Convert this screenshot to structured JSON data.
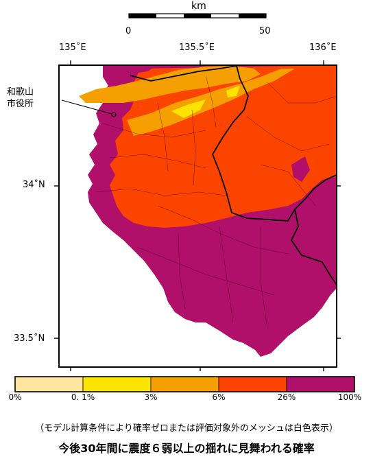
{
  "scale": {
    "unit": "km",
    "start": "0",
    "end": "50"
  },
  "axes": {
    "lon_ticks": [
      "135˚E",
      "135.5˚E",
      "136˚E"
    ],
    "lat_ticks": [
      "34˚N",
      "33.5˚N"
    ]
  },
  "place": {
    "name_line1": "和歌山",
    "name_line2": "市役所"
  },
  "legend": {
    "labels": [
      "0%",
      "0. 1%",
      "3%",
      "6%",
      "26%",
      "100%"
    ],
    "colors": [
      "#fde5a0",
      "#fce300",
      "#f5a000",
      "#fb4400",
      "#b0106a"
    ]
  },
  "note": "（モデル計算条件により確率ゼロまたは評価対象外のメッシュは白色表示）",
  "title": "今後30年間に震度６弱以上の揺れに見舞われる確率"
}
